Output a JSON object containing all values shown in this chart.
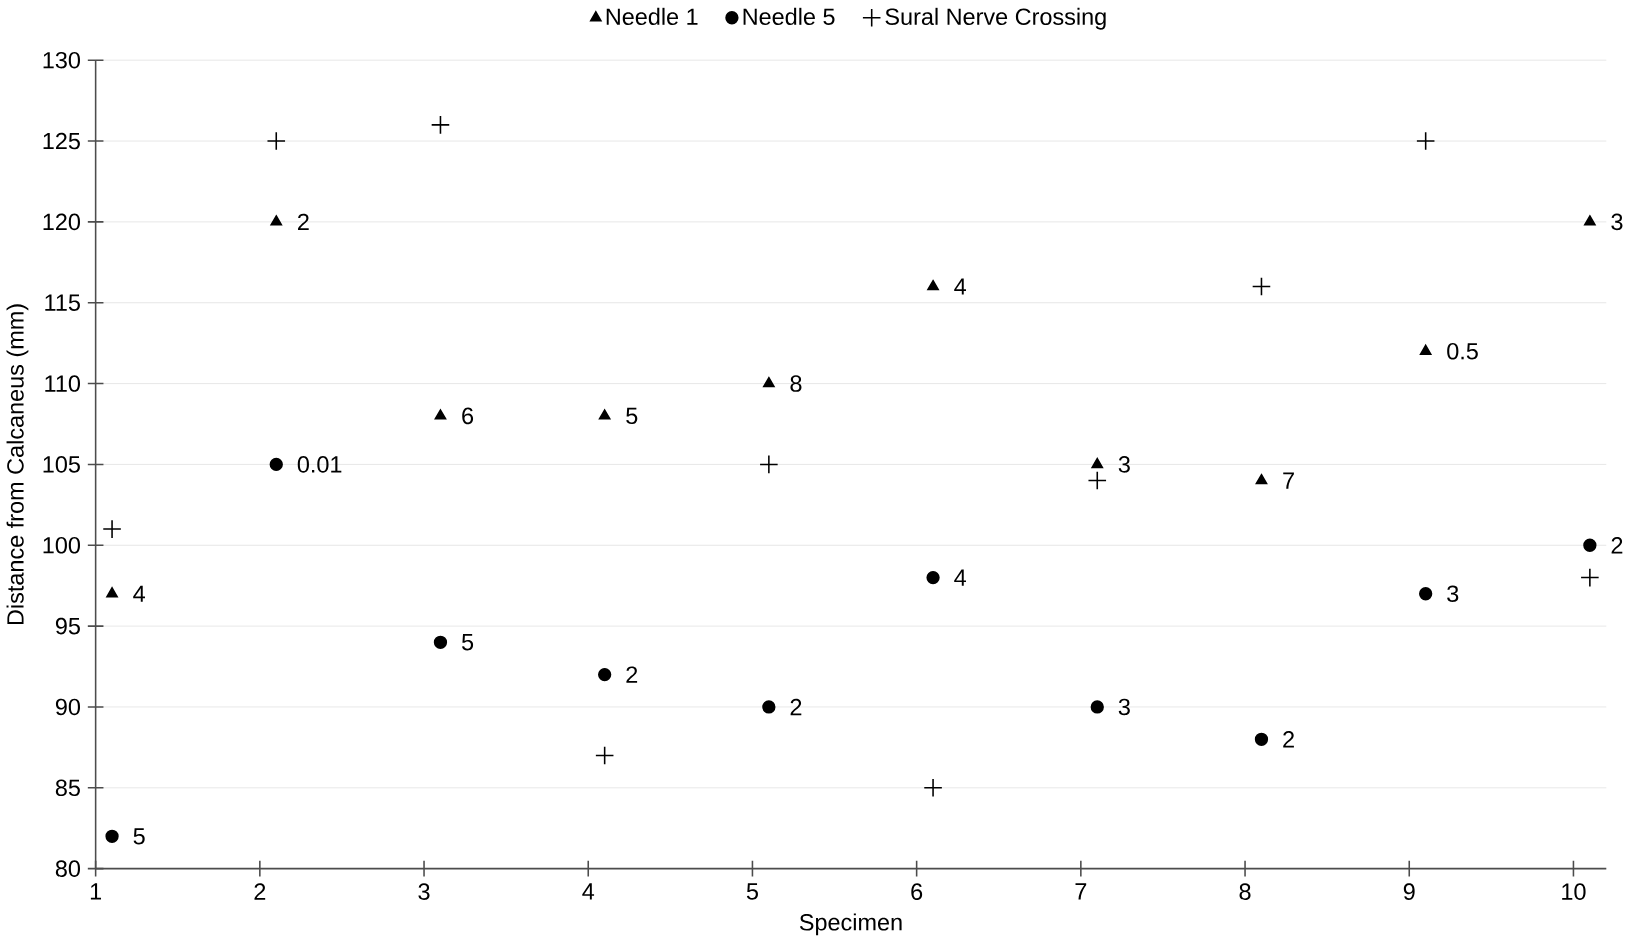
{
  "chart_data": {
    "type": "scatter",
    "xlabel": "Specimen",
    "ylabel": "Distance from Calcaneus (mm)",
    "xlim": [
      1,
      10.2
    ],
    "xticks": [
      1,
      2,
      3,
      4,
      5,
      6,
      7,
      8,
      9,
      10
    ],
    "ylim": [
      80,
      130
    ],
    "yticks": [
      80,
      85,
      90,
      95,
      100,
      105,
      110,
      115,
      120,
      125,
      130
    ],
    "grid": "y",
    "legend": "top",
    "series": [
      {
        "name": "Needle 1",
        "color": "#000000",
        "marker": "triangle",
        "x": [
          1.1,
          2.1,
          3.1,
          4.1,
          5.1,
          6.1,
          7.1,
          8.1,
          9.1,
          10.1
        ],
        "values": [
          97,
          120,
          108,
          108,
          110,
          116,
          105,
          104,
          112,
          120
        ]
      },
      {
        "name": "Needle 5",
        "color": "#000000",
        "marker": "circle",
        "x": [
          1.1,
          2.1,
          3.1,
          4.1,
          5.1,
          6.1,
          7.1,
          8.1,
          9.1,
          10.1
        ],
        "values": [
          82,
          105,
          94,
          92,
          90,
          98,
          90,
          88,
          97,
          100
        ]
      },
      {
        "name": "Sural Nerve Crossing",
        "color": "#000000",
        "marker": "cross",
        "x": [
          1.1,
          2.1,
          3.1,
          4.1,
          5.1,
          6.1,
          7.1,
          8.1,
          9.1,
          10.1
        ],
        "values": [
          101,
          125,
          126,
          87,
          105,
          85,
          104,
          116,
          125,
          98
        ]
      }
    ],
    "annotations": [
      {
        "text": "4",
        "x": 1.1,
        "y": 97
      },
      {
        "text": "2",
        "x": 2.1,
        "y": 120
      },
      {
        "text": "6",
        "x": 3.1,
        "y": 108
      },
      {
        "text": "5",
        "x": 4.1,
        "y": 108
      },
      {
        "text": "8",
        "x": 5.1,
        "y": 110
      },
      {
        "text": "4",
        "x": 6.1,
        "y": 116
      },
      {
        "text": "3",
        "x": 7.1,
        "y": 105
      },
      {
        "text": "7",
        "x": 8.1,
        "y": 104
      },
      {
        "text": "0.5",
        "x": 9.1,
        "y": 112
      },
      {
        "text": "3",
        "x": 10.1,
        "y": 120
      },
      {
        "text": "5",
        "x": 1.1,
        "y": 82
      },
      {
        "text": "0.01",
        "x": 2.1,
        "y": 105
      },
      {
        "text": "5",
        "x": 3.1,
        "y": 94
      },
      {
        "text": "2",
        "x": 4.1,
        "y": 92
      },
      {
        "text": "2",
        "x": 5.1,
        "y": 90
      },
      {
        "text": "4",
        "x": 6.1,
        "y": 98
      },
      {
        "text": "3",
        "x": 7.1,
        "y": 90
      },
      {
        "text": "2",
        "x": 8.1,
        "y": 88
      },
      {
        "text": "3",
        "x": 9.1,
        "y": 97
      },
      {
        "text": "2",
        "x": 10.1,
        "y": 100
      }
    ]
  }
}
